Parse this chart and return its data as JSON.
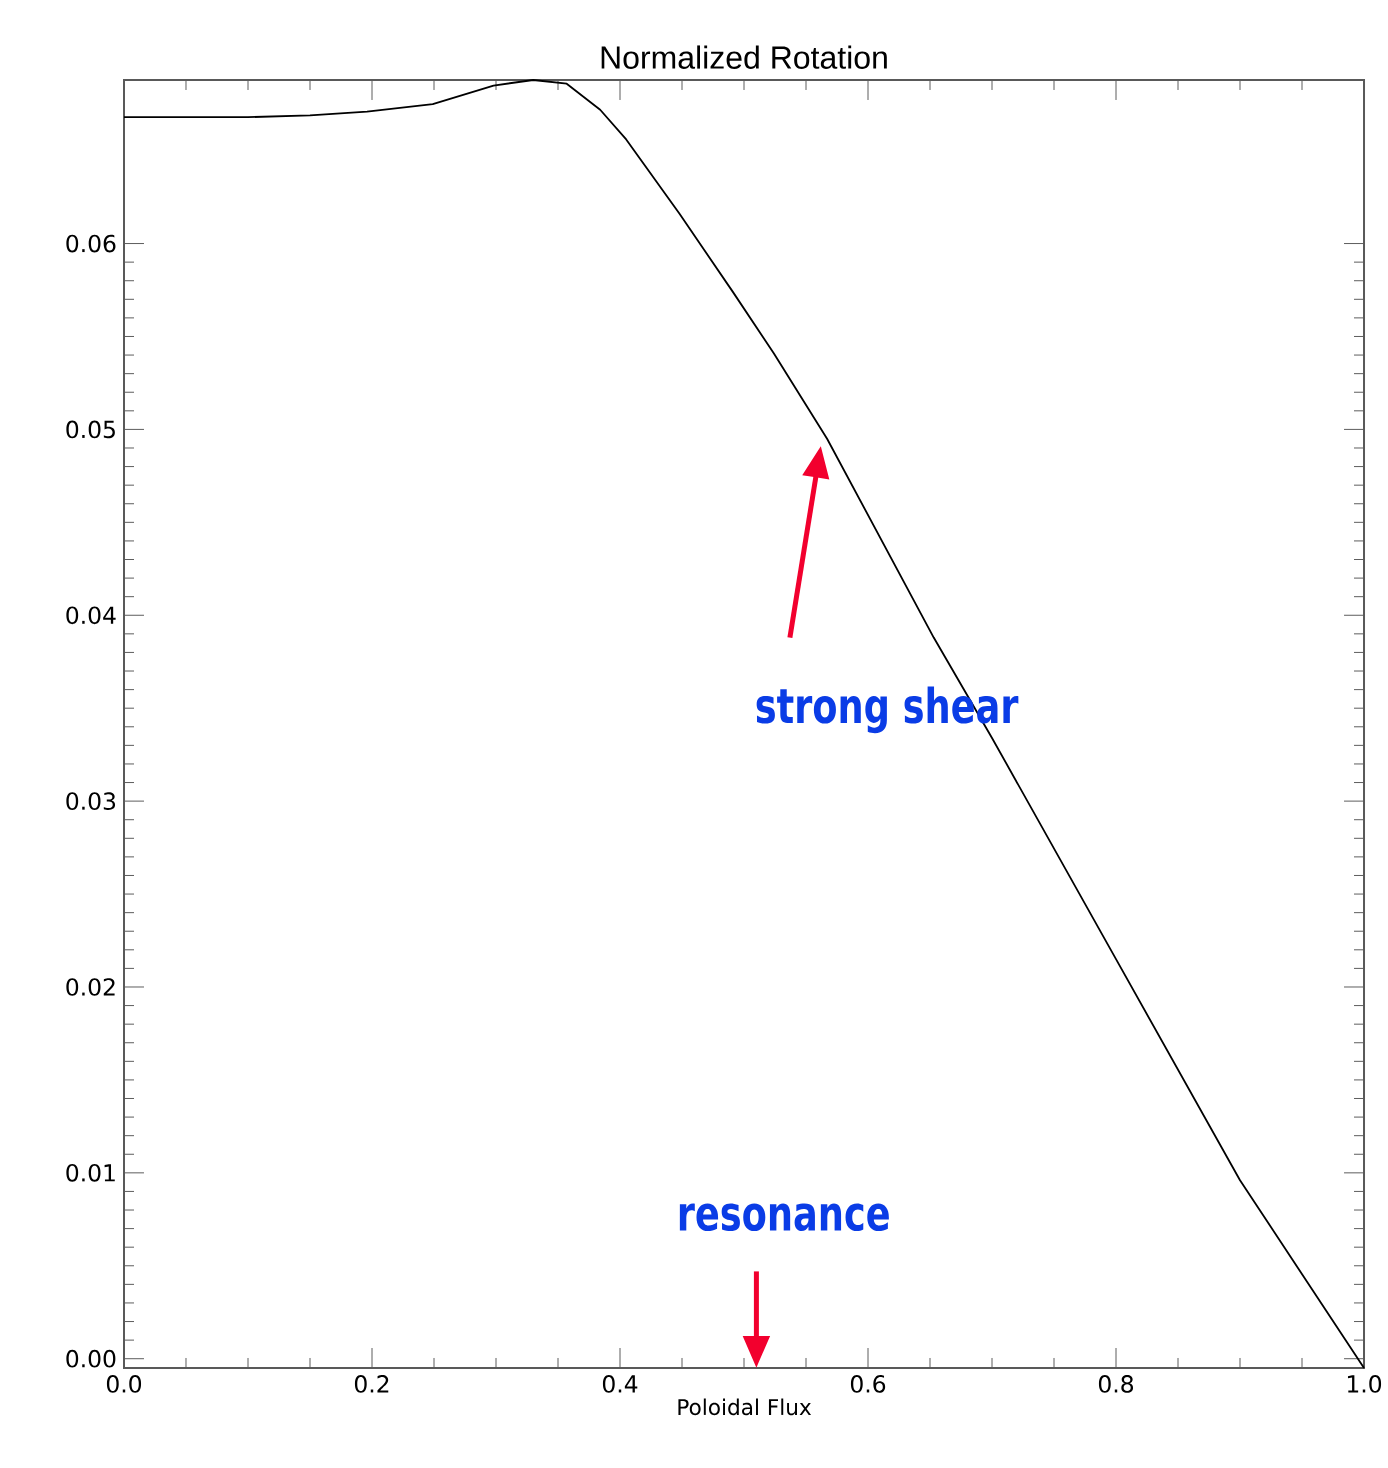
{
  "chart_data": {
    "type": "line",
    "title": "Normalized Rotation",
    "xlabel": "Poloidal Flux",
    "x": [
      0,
      0.1,
      0.15,
      0.196,
      0.249,
      0.298,
      0.33,
      0.357,
      0.384,
      0.405,
      0.448,
      0.491,
      0.524,
      0.567,
      0.653,
      0.7,
      0.8,
      0.9,
      1.0
    ],
    "series": [
      {
        "color": "#000000",
        "values": [
          0.0668,
          0.0668,
          0.0669,
          0.0671,
          0.0675,
          0.0685,
          0.0688,
          0.0686,
          0.0672,
          0.0656,
          0.0616,
          0.0574,
          0.0541,
          0.0495,
          0.0388,
          0.0334,
          0.0215,
          0.0096,
          -0.0005
        ]
      }
    ],
    "xlim": [
      0.0,
      1.0
    ],
    "ylim": [
      -0.0005,
      0.0688
    ],
    "xticks": [
      {
        "value": 0,
        "label": "0.0"
      },
      {
        "value": 0.2,
        "label": "0.2"
      },
      {
        "value": 0.4,
        "label": "0.4"
      },
      {
        "value": 0.6,
        "label": "0.6"
      },
      {
        "value": 0.8,
        "label": "0.8"
      },
      {
        "value": 1,
        "label": "1.0"
      }
    ],
    "yticks": [
      {
        "value": 0,
        "label": "0.00"
      },
      {
        "value": 0.01,
        "label": "0.01"
      },
      {
        "value": 0.02,
        "label": "0.02"
      },
      {
        "value": 0.03,
        "label": "0.03"
      },
      {
        "value": 0.04,
        "label": "0.04"
      },
      {
        "value": 0.05,
        "label": "0.05"
      },
      {
        "value": 0.06,
        "label": "0.06"
      }
    ],
    "annotations": [
      "strong shear",
      "resonance"
    ],
    "marker": "none",
    "line_style": "solid",
    "grid": false
  }
}
